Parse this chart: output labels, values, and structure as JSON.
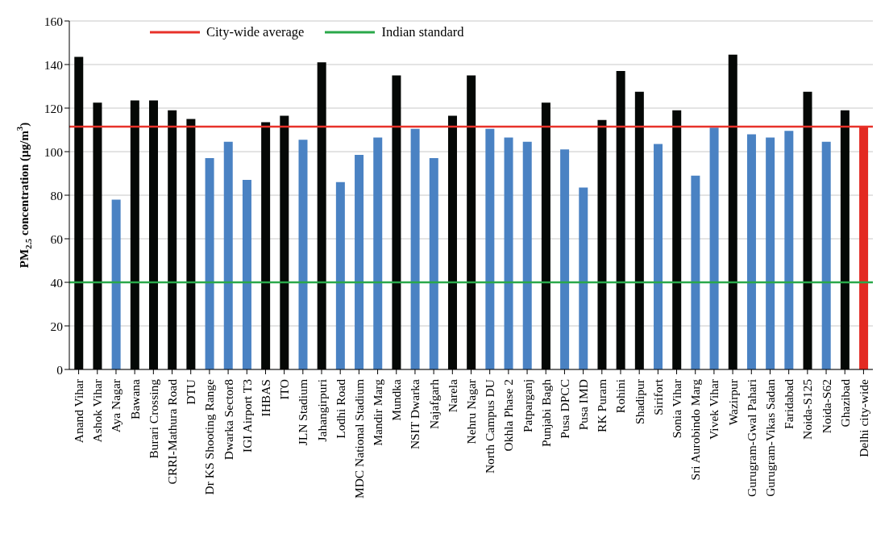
{
  "chart_data": {
    "type": "bar",
    "ylabel": "PM$_{2.5}$ concentration (µg/m$^{3}$)",
    "categories": [
      "Anand Vihar",
      "Ashok Vihar",
      "Aya Nagar",
      "Bawana",
      "Burari Crossing",
      "CRRI-Mathura Road",
      "DTU",
      "Dr KS Shooting Range",
      "Dwarka Sector8",
      "IGI Airport T3",
      "IHBAS",
      "ITO",
      "JLN Stadium",
      "Jahangirpuri",
      "Lodhi Road",
      "MDC National Stadium",
      "Mandir Marg",
      "Mundka",
      "NSIT Dwarka",
      "Najafgarh",
      "Narela",
      "Nehru Nagar",
      "North Campus DU",
      "Okhla Phase 2",
      "Patparganj",
      "Punjabi Bagh",
      "Pusa DPCC",
      "Pusa IMD",
      "RK Puram",
      "Rohini",
      "Shadipur",
      "Sirifort",
      "Sonia Vihar",
      "Sri Aurobindo Marg",
      "Vivek Vihar",
      "Wazirpur",
      "Gurugram-Gwal Pahari",
      "Gurugram-Vikas Sadan",
      "Faridabad",
      "Noida-S125",
      "Noida-S62",
      "Ghazibad",
      "Delhi city-wide"
    ],
    "values": [
      143.5,
      122.5,
      78,
      123.5,
      123.5,
      119,
      115,
      97,
      104.5,
      87,
      113.5,
      116.5,
      105.5,
      141,
      86,
      98.5,
      106.5,
      135,
      110.5,
      97,
      116.5,
      135,
      110.5,
      106.5,
      104.5,
      122.5,
      101,
      83.5,
      114.5,
      137,
      127.5,
      103.5,
      119,
      89,
      111,
      144.5,
      108,
      106.5,
      109.5,
      127.5,
      104.5,
      119,
      111.5
    ],
    "colors": [
      "#050806",
      "#050806",
      "#4a82c3",
      "#050806",
      "#050806",
      "#050806",
      "#050806",
      "#4a82c3",
      "#4a82c3",
      "#4a82c3",
      "#050806",
      "#050806",
      "#4a82c3",
      "#050806",
      "#4a82c3",
      "#4a82c3",
      "#4a82c3",
      "#050806",
      "#4a82c3",
      "#4a82c3",
      "#050806",
      "#050806",
      "#4a82c3",
      "#4a82c3",
      "#4a82c3",
      "#050806",
      "#4a82c3",
      "#4a82c3",
      "#050806",
      "#050806",
      "#050806",
      "#4a82c3",
      "#050806",
      "#4a82c3",
      "#4a82c3",
      "#050806",
      "#4a82c3",
      "#4a82c3",
      "#4a82c3",
      "#050806",
      "#4a82c3",
      "#050806",
      "#e32a22"
    ],
    "ylim": [
      0,
      160
    ],
    "yticks": [
      0,
      20,
      40,
      60,
      80,
      100,
      120,
      140,
      160
    ],
    "grid": "y",
    "legend": "top",
    "ref_lines": [
      {
        "axis": "y",
        "value": 111.5,
        "label": "City-wide average",
        "color": "#e8322a"
      },
      {
        "axis": "y",
        "value": 40,
        "label": "Indian standard",
        "color": "#2aa84a"
      }
    ]
  }
}
